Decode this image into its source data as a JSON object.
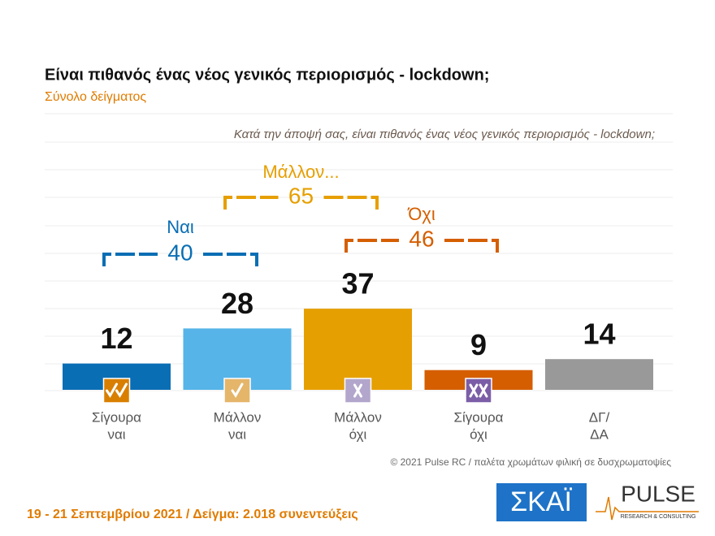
{
  "chart_data": {
    "type": "bar",
    "title": "Είναι πιθανός ένας νέος γενικός περιορισμός - lockdown;",
    "subtitle": "Σύνολο δείγματος",
    "question": "Κατά την άποψή σας, είναι πιθανός ένας νέος γενικός περιορισμός - lockdown;",
    "categories": [
      [
        "Σίγουρα",
        "ναι"
      ],
      [
        "Μάλλον",
        "ναι"
      ],
      [
        "Μάλλον",
        "όχι"
      ],
      [
        "Σίγουρα",
        "όχι"
      ],
      [
        "ΔΓ/",
        "ΔΑ"
      ]
    ],
    "values": [
      12,
      28,
      37,
      9,
      14
    ],
    "colors": [
      "#0a6eb4",
      "#56b4e9",
      "#e69f00",
      "#d55e00",
      "#999999"
    ],
    "groups": [
      {
        "label": "Ναι",
        "value": 40,
        "color": "#0a6eb4"
      },
      {
        "label": "Μάλλον...",
        "value": 65,
        "color": "#e69f00"
      },
      {
        "label": "Όχι",
        "value": 46,
        "color": "#d55e00"
      }
    ],
    "source": "© 2021 Pulse RC  /  παλέτα χρωμάτων φιλική σε δυσχρωματοψίες",
    "footer": "19 - 21 Σεπτεμβρίου 2021  /  Δείγμα:  2.018 συνεντεύξεις",
    "logos": {
      "skai": "ΣΚΑΪ",
      "pulse": "PULSE",
      "pulse_sub": "RESEARCH & CONSULTING"
    }
  }
}
